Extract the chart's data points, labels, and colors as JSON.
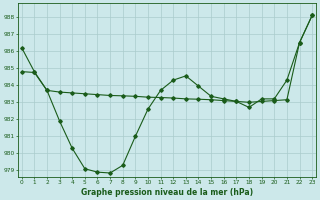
{
  "line1_x": [
    0,
    1,
    2,
    3,
    4,
    5,
    6,
    7,
    8,
    9,
    10,
    11,
    12,
    13,
    14,
    15,
    16,
    17,
    18,
    19,
    20,
    21,
    22,
    23
  ],
  "line1_y": [
    986.2,
    984.8,
    983.7,
    981.9,
    980.3,
    979.1,
    978.9,
    978.85,
    979.3,
    981.0,
    982.6,
    983.7,
    984.3,
    984.55,
    983.95,
    983.35,
    983.2,
    983.05,
    982.7,
    983.2,
    983.2,
    984.3,
    986.5,
    988.1
  ],
  "line2_x": [
    0,
    1,
    2,
    3,
    4,
    5,
    6,
    7,
    8,
    9,
    10,
    11,
    12,
    13,
    14,
    15,
    16,
    17,
    18,
    19,
    20,
    21,
    22,
    23
  ],
  "line2_y": [
    984.8,
    984.75,
    983.7,
    983.6,
    983.55,
    983.5,
    983.45,
    983.4,
    983.38,
    983.35,
    983.3,
    983.28,
    983.25,
    983.2,
    983.18,
    983.15,
    983.1,
    983.05,
    983.0,
    983.05,
    983.1,
    983.15,
    986.5,
    988.1
  ],
  "background_color": "#cce8ea",
  "grid_color": "#aacccc",
  "line_color": "#1a5c1a",
  "xlabel": "Graphe pression niveau de la mer (hPa)",
  "yticks": [
    979,
    980,
    981,
    982,
    983,
    984,
    985,
    986,
    987,
    988
  ],
  "xticks": [
    0,
    1,
    2,
    3,
    4,
    5,
    6,
    7,
    8,
    9,
    10,
    11,
    12,
    13,
    14,
    15,
    16,
    17,
    18,
    19,
    20,
    21,
    22,
    23
  ],
  "xlim": [
    -0.3,
    23.3
  ],
  "ylim": [
    978.6,
    988.8
  ]
}
